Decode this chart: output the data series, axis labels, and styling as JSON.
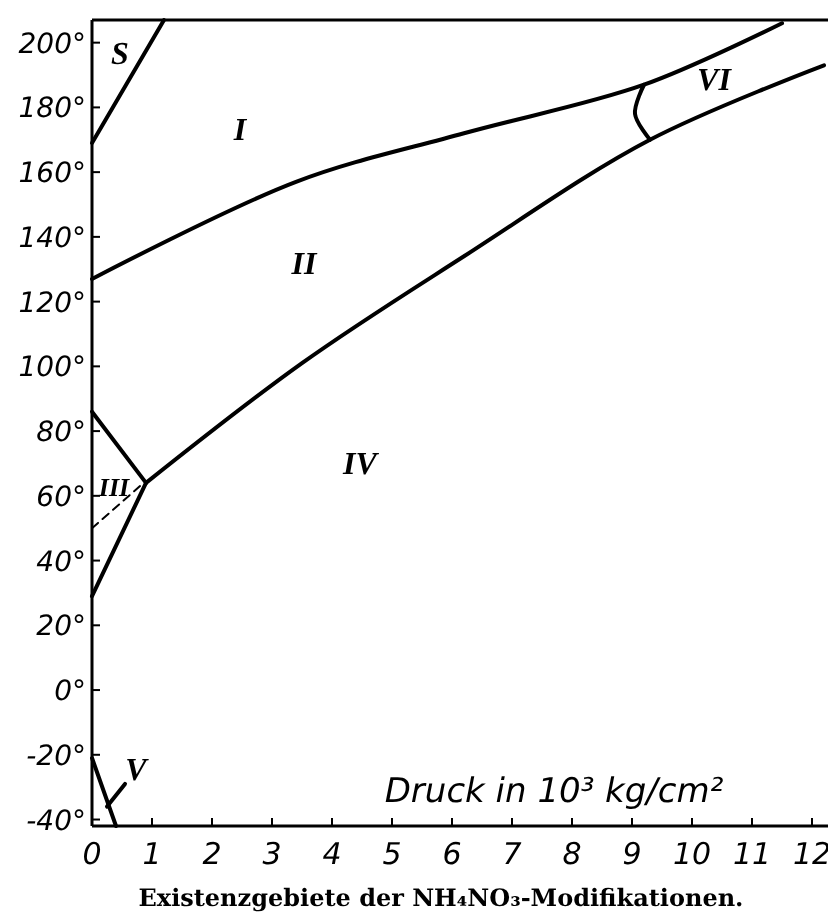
{
  "chart_data": {
    "type": "line",
    "title": "Existenzgebiete der NH₄NO₃-Modifikationen.",
    "xlabel": "Druck in 10³ kg/cm²",
    "xlim": [
      0,
      12.3
    ],
    "ylim": [
      -42,
      207
    ],
    "xticks": [
      0,
      1,
      2,
      3,
      4,
      5,
      6,
      7,
      8,
      9,
      10,
      11,
      12
    ],
    "yticks": [
      {
        "value": -40,
        "label": "-40°"
      },
      {
        "value": -20,
        "label": "-20°"
      },
      {
        "value": 0,
        "label": "0°"
      },
      {
        "value": 20,
        "label": "20°"
      },
      {
        "value": 40,
        "label": "40°"
      },
      {
        "value": 60,
        "label": "60°"
      },
      {
        "value": 80,
        "label": "80°"
      },
      {
        "value": 100,
        "label": "100°"
      },
      {
        "value": 120,
        "label": "120°"
      },
      {
        "value": 140,
        "label": "140°"
      },
      {
        "value": 160,
        "label": "160°"
      },
      {
        "value": 180,
        "label": "180°"
      },
      {
        "value": 200,
        "label": "200°"
      }
    ],
    "grid": false,
    "marker": "none",
    "series": [
      {
        "color": "#000000",
        "x": [
          0,
          1.2
        ],
        "values": [
          169,
          207
        ]
      },
      {
        "color": "#000000",
        "x": [
          0,
          3.4,
          6.2,
          9.2,
          11.5
        ],
        "values": [
          127,
          157,
          172,
          187,
          206
        ]
      },
      {
        "color": "#000000",
        "x": [
          0.9,
          3.5,
          6.2,
          9.3,
          12.2
        ],
        "values": [
          64,
          101,
          134,
          170,
          193
        ]
      },
      {
        "color": "#000000",
        "x": [
          9.2,
          9.05,
          9.3
        ],
        "values": [
          187,
          178,
          170
        ]
      },
      {
        "color": "#000000",
        "x": [
          0,
          0.9
        ],
        "values": [
          86,
          64
        ]
      },
      {
        "color": "#000000",
        "x": [
          0.9,
          0
        ],
        "values": [
          64,
          29
        ]
      },
      {
        "color": "#000000",
        "line_style": "dashed",
        "x": [
          0,
          0.8
        ],
        "values": [
          50,
          63
        ]
      },
      {
        "color": "#000000",
        "x": [
          0,
          0.4
        ],
        "values": [
          -21,
          -42
        ]
      },
      {
        "color": "#000000",
        "x": [
          0.25,
          0.55
        ],
        "values": [
          -36,
          -29
        ]
      }
    ],
    "annotations": [
      "S",
      "I",
      "II",
      "III",
      "IV",
      "V",
      "VI"
    ]
  }
}
